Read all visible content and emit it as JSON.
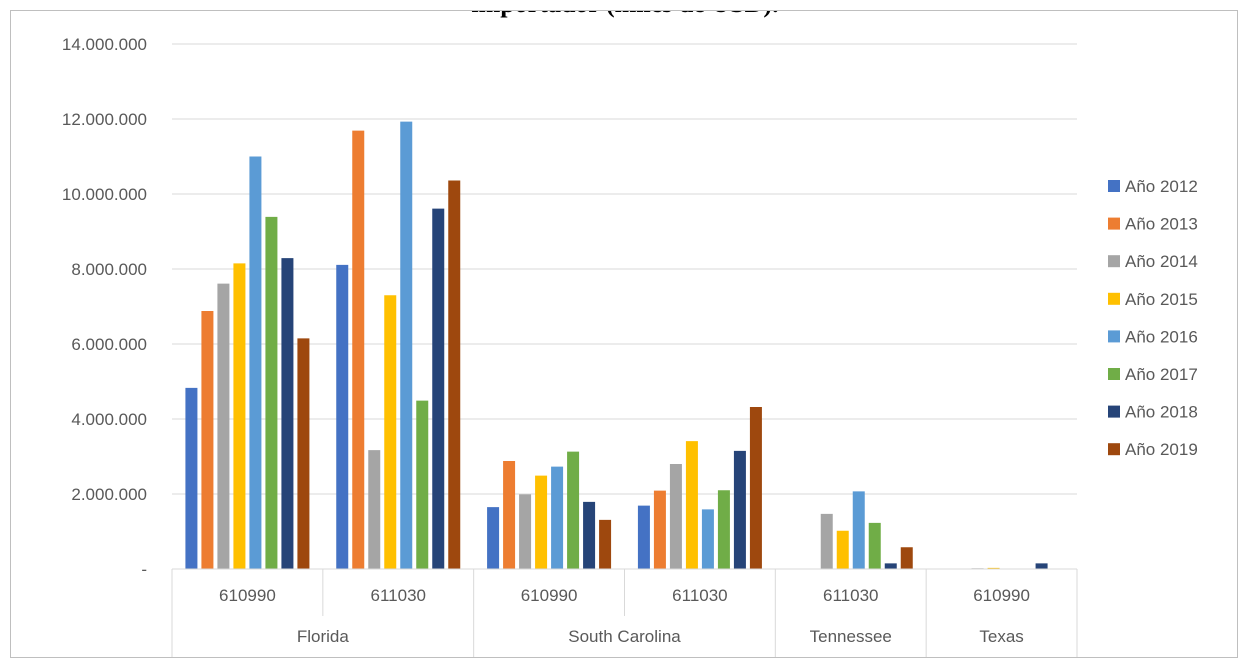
{
  "chart_data": {
    "type": "bar",
    "title": "importador (miles de USD).",
    "xlabel": "",
    "ylabel": "",
    "ylim": [
      0,
      14000000
    ],
    "y_ticks": [
      {
        "value": 0,
        "label": "-"
      },
      {
        "value": 2000000,
        "label": "2.000.000"
      },
      {
        "value": 4000000,
        "label": "4.000.000"
      },
      {
        "value": 6000000,
        "label": "6.000.000"
      },
      {
        "value": 8000000,
        "label": "8.000.000"
      },
      {
        "value": 10000000,
        "label": "10.000.000"
      },
      {
        "value": 12000000,
        "label": "12.000.000"
      },
      {
        "value": 14000000,
        "label": "14.000.000"
      }
    ],
    "grid": true,
    "legend_position": "right",
    "groups": [
      {
        "label": "Florida",
        "categories": [
          "610990",
          "611030"
        ]
      },
      {
        "label": "South Carolina",
        "categories": [
          "610990",
          "611030"
        ]
      },
      {
        "label": "Tennessee",
        "categories": [
          "611030"
        ]
      },
      {
        "label": "Texas",
        "categories": [
          "610990"
        ]
      }
    ],
    "categories": [
      "610990",
      "611030",
      "610990",
      "611030",
      "611030",
      "610990"
    ],
    "series": [
      {
        "name": "Año 2012",
        "color": "#4472c4",
        "values": [
          4830000,
          8110000,
          1650000,
          1690000,
          0,
          0
        ]
      },
      {
        "name": "Año 2013",
        "color": "#ed7d31",
        "values": [
          6880000,
          11690000,
          2880000,
          2090000,
          0,
          0
        ]
      },
      {
        "name": "Año 2014",
        "color": "#a5a5a5",
        "values": [
          7610000,
          3170000,
          1990000,
          2800000,
          1470000,
          20000
        ]
      },
      {
        "name": "Año 2015",
        "color": "#ffc000",
        "values": [
          8150000,
          7300000,
          2490000,
          3410000,
          1020000,
          30000
        ]
      },
      {
        "name": "Año 2016",
        "color": "#5b9bd5",
        "values": [
          11000000,
          11930000,
          2730000,
          1590000,
          2070000,
          0
        ]
      },
      {
        "name": "Año 2017",
        "color": "#70ad47",
        "values": [
          9390000,
          4490000,
          3130000,
          2100000,
          1230000,
          0
        ]
      },
      {
        "name": "Año 2018",
        "color": "#264478",
        "values": [
          8290000,
          9610000,
          1790000,
          3150000,
          150000,
          150000
        ]
      },
      {
        "name": "Año 2019",
        "color": "#9e480e",
        "values": [
          6150000,
          10360000,
          1310000,
          4320000,
          580000,
          0
        ]
      }
    ]
  }
}
